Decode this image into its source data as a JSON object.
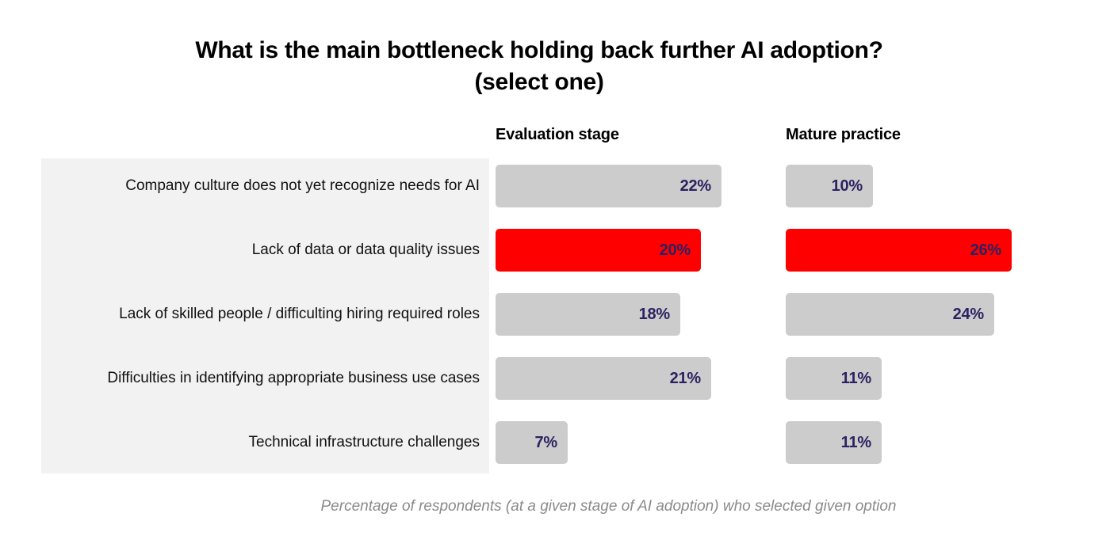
{
  "title": {
    "line1": "What is the main bottleneck holding back further AI adoption?",
    "line2": "(select one)"
  },
  "columns": [
    {
      "label": "Evaluation stage"
    },
    {
      "label": "Mature practice"
    }
  ],
  "caption": "Percentage of respondents (at a given stage of AI adoption) who selected given option",
  "colors": {
    "bar_default": "#cccccc",
    "bar_highlight": "#ff0000",
    "value_text": "#2b2262",
    "label_panel": "#f2f2f2",
    "caption_text": "#8a8a8a"
  },
  "chart_data": {
    "type": "bar",
    "orientation": "horizontal",
    "title": "What is the main bottleneck holding back further AI adoption? (select one)",
    "subtitle": "Percentage of respondents (at a given stage of AI adoption) who selected given option",
    "categories": [
      "Company culture does not yet recognize needs for AI",
      "Lack of data or data quality issues",
      "Lack of skilled people / difficulting hiring required roles",
      "Difficulties in identifying appropriate business use cases",
      "Technical infrastructure challenges"
    ],
    "series": [
      {
        "name": "Evaluation stage",
        "values": [
          22,
          20,
          18,
          21,
          7
        ]
      },
      {
        "name": "Mature practice",
        "values": [
          10,
          26,
          24,
          11,
          11
        ]
      }
    ],
    "highlighted_category": "Lack of data or data quality issues",
    "value_format": "percent",
    "value_suffix": "%",
    "axis": "none",
    "grid": false,
    "legend_position": "column-headers",
    "bar_scaling": "per-column, max value fills full bar width"
  }
}
